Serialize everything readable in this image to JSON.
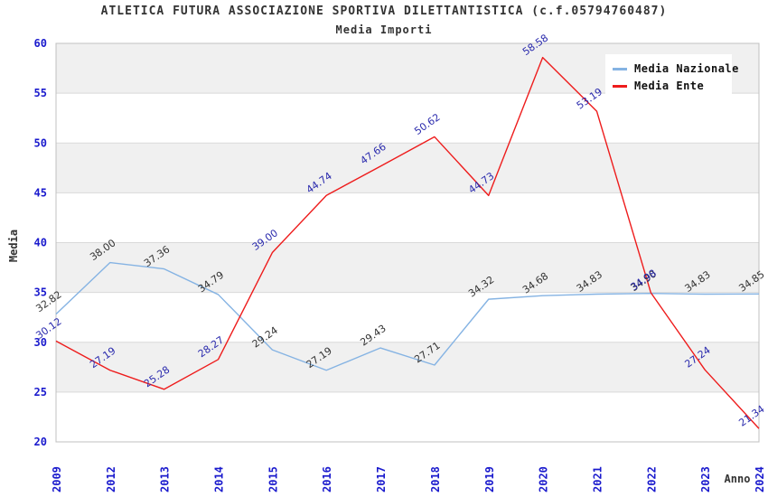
{
  "chart_data": {
    "type": "line",
    "title": "ATLETICA FUTURA ASSOCIAZIONE SPORTIVA DILETTANTISTICA (c.f.05794760487)",
    "subtitle": "Media Importi",
    "xlabel": "Anno",
    "ylabel": "Media",
    "ylim": [
      20,
      60
    ],
    "ytick_step": 5,
    "yticks": [
      20,
      25,
      30,
      35,
      40,
      45,
      50,
      55,
      60
    ],
    "grid": true,
    "legend_position": "top-right",
    "categories": [
      "2009",
      "2012",
      "2013",
      "2014",
      "2015",
      "2016",
      "2017",
      "2018",
      "2019",
      "2020",
      "2021",
      "2022",
      "2023",
      "2024"
    ],
    "series": [
      {
        "name": "Media Nazionale",
        "color": "#85b3e3",
        "label_color": "#333333",
        "values": [
          32.82,
          38.0,
          37.36,
          34.79,
          29.24,
          27.19,
          29.43,
          27.71,
          34.32,
          34.68,
          34.83,
          34.9,
          34.83,
          34.85
        ]
      },
      {
        "name": "Media Ente",
        "color": "#ee1c1c",
        "label_color": "#2a2aad",
        "values": [
          30.12,
          27.19,
          25.28,
          28.27,
          39.0,
          44.74,
          47.66,
          50.62,
          44.73,
          58.58,
          53.19,
          34.98,
          27.24,
          21.34
        ]
      }
    ],
    "colors": {
      "band": "#f0f0f0",
      "grid_line": "#d9d9d9",
      "plot_border": "#c0c0c0",
      "tick_label": "#1a1acd",
      "axis_title": "#333333",
      "title_text": "#333333",
      "legend_text": "#111111",
      "background": "#ffffff"
    }
  }
}
